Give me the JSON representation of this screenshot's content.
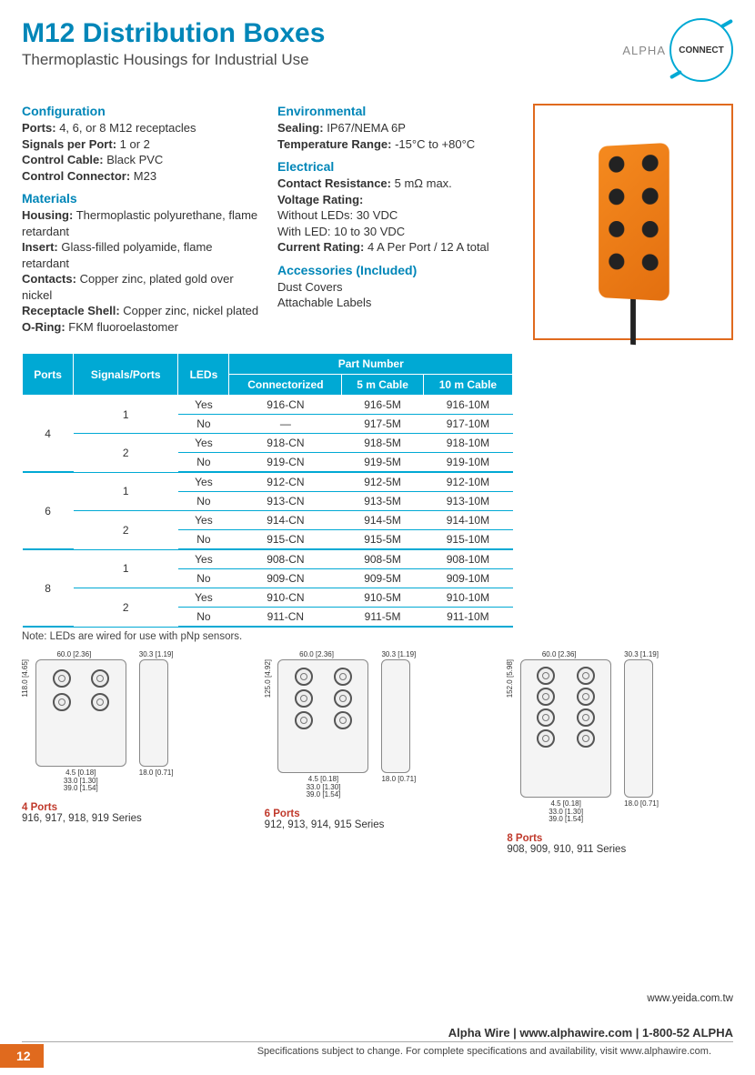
{
  "colors": {
    "accent_blue": "#0086b8",
    "table_blue": "#00a9d4",
    "accent_orange": "#e06a1e",
    "product_orange": "#f58a1f",
    "red": "#c0392b",
    "text": "#333333",
    "background": "#ffffff"
  },
  "header": {
    "title": "M12 Distribution Boxes",
    "subtitle": "Thermoplastic Housings for Industrial Use",
    "logo_alpha": "ALPHA",
    "logo_connect": "CONNECT"
  },
  "specs": {
    "configuration": {
      "heading": "Configuration",
      "ports_label": "Ports:",
      "ports": "4, 6, or 8 M12 receptacles",
      "signals_label": "Signals per Port:",
      "signals": "1 or 2",
      "cable_label": "Control Cable:",
      "cable": "Black PVC",
      "connector_label": "Control Connector:",
      "connector": "M23"
    },
    "materials": {
      "heading": "Materials",
      "housing_label": "Housing:",
      "housing": "Thermoplastic polyurethane, flame retardant",
      "insert_label": "Insert:",
      "insert": "Glass-filled polyamide, flame retardant",
      "contacts_label": "Contacts:",
      "contacts": "Copper zinc, plated gold over nickel",
      "shell_label": "Receptacle Shell:",
      "shell": "Copper zinc, nickel plated",
      "oring_label": "O-Ring:",
      "oring": "FKM fluoroelastomer"
    },
    "environmental": {
      "heading": "Environmental",
      "sealing_label": "Sealing:",
      "sealing": "IP67/NEMA 6P",
      "temp_label": "Temperature Range:",
      "temp": "-15°C to +80°C"
    },
    "electrical": {
      "heading": "Electrical",
      "contact_label": "Contact Resistance:",
      "contact": "5 mΩ max.",
      "voltage_label": "Voltage Rating:",
      "voltage_noled": "Without LEDs: 30 VDC",
      "voltage_led": "With LED: 10 to 30 VDC",
      "current_label": "Current Rating:",
      "current": "4 A Per Port / 12 A total"
    },
    "accessories": {
      "heading": "Accessories (Included)",
      "line1": "Dust Covers",
      "line2": "Attachable Labels"
    }
  },
  "table": {
    "header_group": "Part Number",
    "columns": [
      "Ports",
      "Signals/Ports",
      "LEDs",
      "Connectorized",
      "5 m Cable",
      "10 m Cable"
    ],
    "rows": [
      {
        "ports": "4",
        "sp": "1",
        "led": "Yes",
        "c": "916-CN",
        "c5": "916-5M",
        "c10": "916-10M"
      },
      {
        "ports": "",
        "sp": "",
        "led": "No",
        "c": "—",
        "c5": "917-5M",
        "c10": "917-10M"
      },
      {
        "ports": "",
        "sp": "2",
        "led": "Yes",
        "c": "918-CN",
        "c5": "918-5M",
        "c10": "918-10M"
      },
      {
        "ports": "",
        "sp": "",
        "led": "No",
        "c": "919-CN",
        "c5": "919-5M",
        "c10": "919-10M"
      },
      {
        "ports": "6",
        "sp": "1",
        "led": "Yes",
        "c": "912-CN",
        "c5": "912-5M",
        "c10": "912-10M"
      },
      {
        "ports": "",
        "sp": "",
        "led": "No",
        "c": "913-CN",
        "c5": "913-5M",
        "c10": "913-10M"
      },
      {
        "ports": "",
        "sp": "2",
        "led": "Yes",
        "c": "914-CN",
        "c5": "914-5M",
        "c10": "914-10M"
      },
      {
        "ports": "",
        "sp": "",
        "led": "No",
        "c": "915-CN",
        "c5": "915-5M",
        "c10": "915-10M"
      },
      {
        "ports": "8",
        "sp": "1",
        "led": "Yes",
        "c": "908-CN",
        "c5": "908-5M",
        "c10": "908-10M"
      },
      {
        "ports": "",
        "sp": "",
        "led": "No",
        "c": "909-CN",
        "c5": "909-5M",
        "c10": "909-10M"
      },
      {
        "ports": "",
        "sp": "2",
        "led": "Yes",
        "c": "910-CN",
        "c5": "910-5M",
        "c10": "910-10M"
      },
      {
        "ports": "",
        "sp": "",
        "led": "No",
        "c": "911-CN",
        "c5": "911-5M",
        "c10": "911-10M"
      }
    ],
    "note": "Note: LEDs are wired for use with pNp sensors."
  },
  "diagrams": {
    "d4": {
      "title": "4 Ports",
      "series": "916, 917, 918, 919 Series",
      "main_w": "60.0 [2.36]",
      "main_h": "118.0 [4.65]",
      "side_w": "30.3 [1.19]",
      "bhole": "4.5 [0.18]",
      "bw1": "33.0 [1.30]",
      "bw2": "39.0 [1.54]",
      "bside": "18.0 [0.71]"
    },
    "d6": {
      "title": "6 Ports",
      "series": "912, 913, 914, 915 Series",
      "main_w": "60.0 [2.36]",
      "main_h": "125.0 [4.92]",
      "side_w": "30.3 [1.19]",
      "bhole": "4.5 [0.18]",
      "bw1": "33.0 [1.30]",
      "bw2": "39.0 [1.54]",
      "bside": "18.0 [0.71]"
    },
    "d8": {
      "title": "8 Ports",
      "series": "908, 909, 910, 911 Series",
      "main_w": "60.0 [2.36]",
      "main_h": "152.0 [5.98]",
      "side_w": "30.3 [1.19]",
      "bhole": "4.5 [0.18]",
      "bw1": "33.0 [1.30]",
      "bw2": "39.0 [1.54]",
      "bside": "18.0 [0.71]"
    }
  },
  "footer": {
    "yeida": "www.yeida.com.tw",
    "main": "Alpha Wire | www.alphawire.com | 1-800-52 ALPHA",
    "sub": "Specifications subject to change. For complete specifications and availability, visit www.alphawire.com.",
    "page": "12"
  }
}
